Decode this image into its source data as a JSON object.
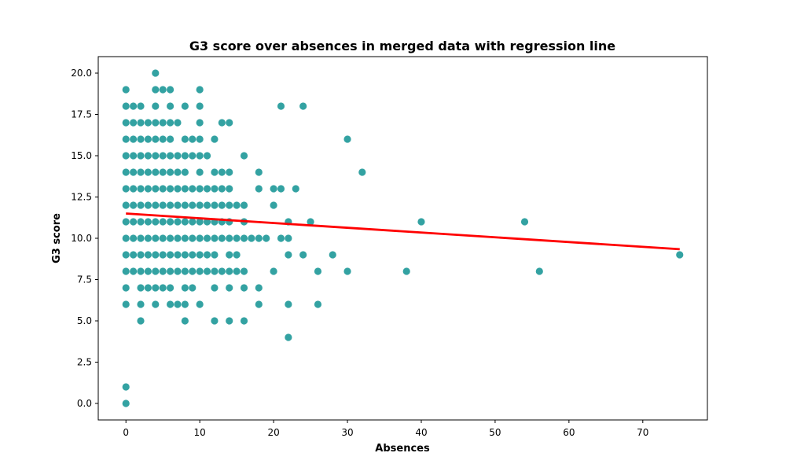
{
  "chart_data": {
    "type": "scatter",
    "title": "G3 score over absences in merged data with regression line",
    "xlabel": "Absences",
    "ylabel": "G3 score",
    "xlim": [
      -3.75,
      78.75
    ],
    "ylim": [
      -1.0,
      21.0
    ],
    "xticks": [
      0,
      10,
      20,
      30,
      40,
      50,
      60,
      70
    ],
    "xtick_labels": [
      "0",
      "10",
      "20",
      "30",
      "40",
      "50",
      "60",
      "70"
    ],
    "yticks": [
      0,
      2.5,
      5,
      7.5,
      10,
      12.5,
      15,
      17.5,
      20
    ],
    "ytick_labels": [
      "0.0",
      "2.5",
      "5.0",
      "7.5",
      "10.0",
      "12.5",
      "15.0",
      "17.5",
      "20.0"
    ],
    "grid": false,
    "colors": {
      "points": "#008b8b",
      "regression": "#ff0000"
    },
    "regression": {
      "x": [
        0,
        75
      ],
      "y": [
        11.5,
        9.34
      ]
    },
    "points": [
      [
        0,
        0
      ],
      [
        0,
        1
      ],
      [
        0,
        6
      ],
      [
        0,
        7
      ],
      [
        0,
        8
      ],
      [
        0,
        9
      ],
      [
        0,
        10
      ],
      [
        0,
        11
      ],
      [
        0,
        12
      ],
      [
        0,
        13
      ],
      [
        0,
        14
      ],
      [
        0,
        15
      ],
      [
        0,
        16
      ],
      [
        0,
        17
      ],
      [
        0,
        18
      ],
      [
        0,
        19
      ],
      [
        1,
        8
      ],
      [
        1,
        9
      ],
      [
        1,
        10
      ],
      [
        1,
        11
      ],
      [
        1,
        12
      ],
      [
        1,
        13
      ],
      [
        1,
        14
      ],
      [
        1,
        15
      ],
      [
        1,
        16
      ],
      [
        1,
        17
      ],
      [
        1,
        18
      ],
      [
        2,
        5
      ],
      [
        2,
        6
      ],
      [
        2,
        7
      ],
      [
        2,
        8
      ],
      [
        2,
        9
      ],
      [
        2,
        10
      ],
      [
        2,
        11
      ],
      [
        2,
        12
      ],
      [
        2,
        13
      ],
      [
        2,
        14
      ],
      [
        2,
        15
      ],
      [
        2,
        16
      ],
      [
        2,
        17
      ],
      [
        2,
        18
      ],
      [
        3,
        7
      ],
      [
        3,
        8
      ],
      [
        3,
        9
      ],
      [
        3,
        10
      ],
      [
        3,
        11
      ],
      [
        3,
        12
      ],
      [
        3,
        13
      ],
      [
        3,
        14
      ],
      [
        3,
        15
      ],
      [
        3,
        16
      ],
      [
        3,
        17
      ],
      [
        4,
        6
      ],
      [
        4,
        7
      ],
      [
        4,
        8
      ],
      [
        4,
        9
      ],
      [
        4,
        10
      ],
      [
        4,
        11
      ],
      [
        4,
        12
      ],
      [
        4,
        13
      ],
      [
        4,
        14
      ],
      [
        4,
        15
      ],
      [
        4,
        16
      ],
      [
        4,
        17
      ],
      [
        4,
        18
      ],
      [
        4,
        19
      ],
      [
        4,
        20
      ],
      [
        5,
        7
      ],
      [
        5,
        8
      ],
      [
        5,
        9
      ],
      [
        5,
        10
      ],
      [
        5,
        11
      ],
      [
        5,
        12
      ],
      [
        5,
        13
      ],
      [
        5,
        14
      ],
      [
        5,
        15
      ],
      [
        5,
        16
      ],
      [
        5,
        17
      ],
      [
        5,
        19
      ],
      [
        6,
        6
      ],
      [
        6,
        7
      ],
      [
        6,
        8
      ],
      [
        6,
        9
      ],
      [
        6,
        10
      ],
      [
        6,
        11
      ],
      [
        6,
        12
      ],
      [
        6,
        13
      ],
      [
        6,
        14
      ],
      [
        6,
        15
      ],
      [
        6,
        16
      ],
      [
        6,
        17
      ],
      [
        6,
        18
      ],
      [
        6,
        19
      ],
      [
        7,
        6
      ],
      [
        7,
        8
      ],
      [
        7,
        9
      ],
      [
        7,
        10
      ],
      [
        7,
        11
      ],
      [
        7,
        12
      ],
      [
        7,
        13
      ],
      [
        7,
        14
      ],
      [
        7,
        15
      ],
      [
        7,
        17
      ],
      [
        8,
        5
      ],
      [
        8,
        6
      ],
      [
        8,
        7
      ],
      [
        8,
        8
      ],
      [
        8,
        9
      ],
      [
        8,
        10
      ],
      [
        8,
        11
      ],
      [
        8,
        12
      ],
      [
        8,
        13
      ],
      [
        8,
        14
      ],
      [
        8,
        15
      ],
      [
        8,
        16
      ],
      [
        8,
        18
      ],
      [
        9,
        7
      ],
      [
        9,
        8
      ],
      [
        9,
        9
      ],
      [
        9,
        10
      ],
      [
        9,
        11
      ],
      [
        9,
        12
      ],
      [
        9,
        13
      ],
      [
        9,
        15
      ],
      [
        9,
        16
      ],
      [
        10,
        6
      ],
      [
        10,
        8
      ],
      [
        10,
        9
      ],
      [
        10,
        10
      ],
      [
        10,
        11
      ],
      [
        10,
        12
      ],
      [
        10,
        13
      ],
      [
        10,
        14
      ],
      [
        10,
        15
      ],
      [
        10,
        16
      ],
      [
        10,
        17
      ],
      [
        10,
        18
      ],
      [
        10,
        19
      ],
      [
        11,
        8
      ],
      [
        11,
        9
      ],
      [
        11,
        10
      ],
      [
        11,
        11
      ],
      [
        11,
        12
      ],
      [
        11,
        13
      ],
      [
        11,
        15
      ],
      [
        12,
        5
      ],
      [
        12,
        7
      ],
      [
        12,
        8
      ],
      [
        12,
        9
      ],
      [
        12,
        10
      ],
      [
        12,
        11
      ],
      [
        12,
        12
      ],
      [
        12,
        13
      ],
      [
        12,
        14
      ],
      [
        12,
        16
      ],
      [
        13,
        8
      ],
      [
        13,
        10
      ],
      [
        13,
        11
      ],
      [
        13,
        12
      ],
      [
        13,
        13
      ],
      [
        13,
        14
      ],
      [
        13,
        17
      ],
      [
        14,
        5
      ],
      [
        14,
        7
      ],
      [
        14,
        8
      ],
      [
        14,
        9
      ],
      [
        14,
        10
      ],
      [
        14,
        11
      ],
      [
        14,
        12
      ],
      [
        14,
        13
      ],
      [
        14,
        14
      ],
      [
        14,
        17
      ],
      [
        15,
        8
      ],
      [
        15,
        9
      ],
      [
        15,
        10
      ],
      [
        15,
        12
      ],
      [
        16,
        5
      ],
      [
        16,
        7
      ],
      [
        16,
        8
      ],
      [
        16,
        10
      ],
      [
        16,
        11
      ],
      [
        16,
        12
      ],
      [
        16,
        15
      ],
      [
        17,
        10
      ],
      [
        18,
        6
      ],
      [
        18,
        7
      ],
      [
        18,
        10
      ],
      [
        18,
        13
      ],
      [
        18,
        14
      ],
      [
        19,
        10
      ],
      [
        20,
        8
      ],
      [
        20,
        12
      ],
      [
        20,
        13
      ],
      [
        21,
        10
      ],
      [
        21,
        13
      ],
      [
        21,
        18
      ],
      [
        22,
        4
      ],
      [
        22,
        6
      ],
      [
        22,
        9
      ],
      [
        22,
        10
      ],
      [
        22,
        11
      ],
      [
        23,
        13
      ],
      [
        24,
        9
      ],
      [
        24,
        18
      ],
      [
        25,
        11
      ],
      [
        26,
        6
      ],
      [
        26,
        8
      ],
      [
        28,
        9
      ],
      [
        30,
        8
      ],
      [
        30,
        16
      ],
      [
        32,
        14
      ],
      [
        38,
        8
      ],
      [
        40,
        11
      ],
      [
        54,
        11
      ],
      [
        56,
        8
      ],
      [
        75,
        9
      ]
    ]
  }
}
